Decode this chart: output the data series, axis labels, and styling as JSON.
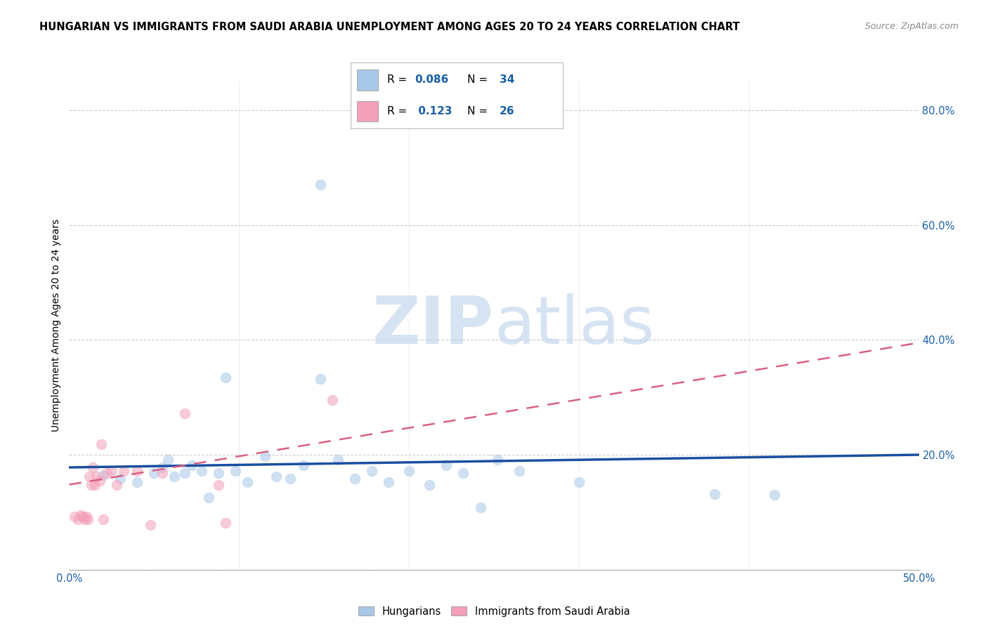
{
  "title": "HUNGARIAN VS IMMIGRANTS FROM SAUDI ARABIA UNEMPLOYMENT AMONG AGES 20 TO 24 YEARS CORRELATION CHART",
  "source": "Source: ZipAtlas.com",
  "ylabel": "Unemployment Among Ages 20 to 24 years",
  "xlim": [
    0.0,
    0.5
  ],
  "ylim": [
    0.0,
    0.85
  ],
  "x_ticks": [
    0.0,
    0.1,
    0.2,
    0.3,
    0.4,
    0.5
  ],
  "x_tick_labels": [
    "0.0%",
    "",
    "",
    "",
    "",
    "50.0%"
  ],
  "y_ticks_right": [
    0.0,
    0.2,
    0.4,
    0.6,
    0.8
  ],
  "y_tick_labels_right": [
    "",
    "20.0%",
    "40.0%",
    "60.0%",
    "80.0%"
  ],
  "blue_color": "#a8c8e8",
  "pink_color": "#f4a0b8",
  "line_blue": "#1a4fa0",
  "line_pink": "#d96080",
  "watermark_zip": "ZIP",
  "watermark_atlas": "atlas",
  "blue_scatter_x": [
    0.02,
    0.03,
    0.04,
    0.05,
    0.055,
    0.058,
    0.062,
    0.068,
    0.072,
    0.078,
    0.082,
    0.088,
    0.092,
    0.098,
    0.105,
    0.115,
    0.122,
    0.13,
    0.138,
    0.148,
    0.158,
    0.168,
    0.178,
    0.188,
    0.2,
    0.212,
    0.222,
    0.232,
    0.242,
    0.252,
    0.265,
    0.3,
    0.38,
    0.415
  ],
  "blue_scatter_y": [
    0.165,
    0.158,
    0.152,
    0.168,
    0.178,
    0.192,
    0.162,
    0.168,
    0.182,
    0.172,
    0.125,
    0.168,
    0.335,
    0.172,
    0.152,
    0.198,
    0.162,
    0.158,
    0.182,
    0.332,
    0.192,
    0.158,
    0.172,
    0.152,
    0.172,
    0.148,
    0.182,
    0.168,
    0.108,
    0.192,
    0.172,
    0.152,
    0.132,
    0.13
  ],
  "blue_outlier_x": [
    0.148
  ],
  "blue_outlier_y": [
    0.67
  ],
  "pink_scatter_x": [
    0.003,
    0.005,
    0.007,
    0.008,
    0.009,
    0.01,
    0.011,
    0.012,
    0.013,
    0.014,
    0.015,
    0.016,
    0.018,
    0.019,
    0.02,
    0.022,
    0.025,
    0.028,
    0.032,
    0.04,
    0.048,
    0.055,
    0.068,
    0.088,
    0.092,
    0.155
  ],
  "pink_scatter_y": [
    0.092,
    0.088,
    0.095,
    0.092,
    0.088,
    0.092,
    0.088,
    0.162,
    0.148,
    0.178,
    0.148,
    0.162,
    0.155,
    0.218,
    0.088,
    0.168,
    0.172,
    0.148,
    0.172,
    0.172,
    0.078,
    0.168,
    0.272,
    0.148,
    0.082,
    0.295
  ],
  "blue_line_x0": 0.0,
  "blue_line_y0": 0.178,
  "blue_line_x1": 0.5,
  "blue_line_y1": 0.2,
  "pink_line_x0": 0.0,
  "pink_line_y0": 0.148,
  "pink_line_x1": 0.5,
  "pink_line_y1": 0.395,
  "marker_size": 110,
  "alpha_scatter": 0.55,
  "grid_color": "#cccccc",
  "background_color": "#ffffff",
  "title_fontsize": 10.5,
  "axis_fontsize": 10,
  "tick_fontsize": 10.5
}
